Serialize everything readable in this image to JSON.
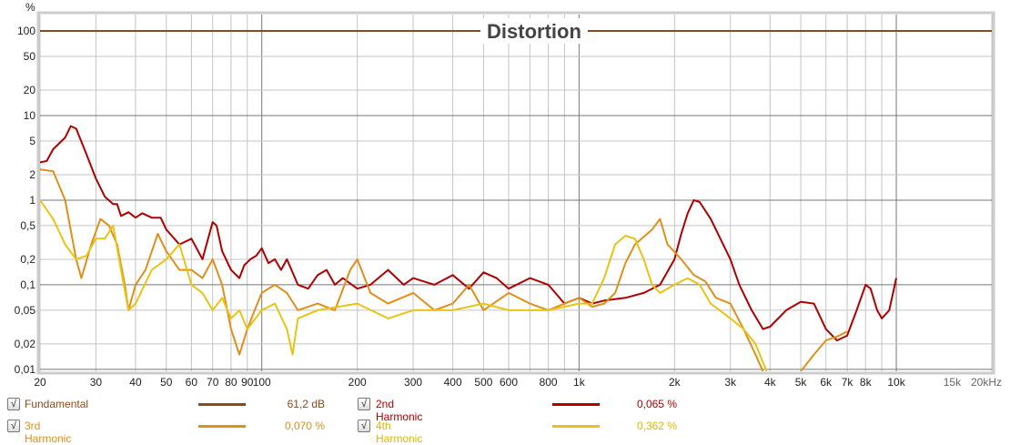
{
  "chart_data": {
    "type": "line",
    "title": "Distortion",
    "ylabel": "%",
    "xlabel": "",
    "x_scale": "log",
    "y_scale": "log",
    "xlim": [
      20,
      20000
    ],
    "ylim": [
      0.0095,
      156
    ],
    "grid": true,
    "x_ticks": [
      {
        "v": 20,
        "label": "20"
      },
      {
        "v": 30,
        "label": "30"
      },
      {
        "v": 40,
        "label": "40"
      },
      {
        "v": 50,
        "label": "50"
      },
      {
        "v": 60,
        "label": "60"
      },
      {
        "v": 70,
        "label": "70"
      },
      {
        "v": 80,
        "label": "80"
      },
      {
        "v": 90,
        "label": "90"
      },
      {
        "v": 100,
        "label": "100"
      },
      {
        "v": 200,
        "label": "200"
      },
      {
        "v": 300,
        "label": "300"
      },
      {
        "v": 400,
        "label": "400"
      },
      {
        "v": 500,
        "label": "500"
      },
      {
        "v": 600,
        "label": "600"
      },
      {
        "v": 800,
        "label": "800"
      },
      {
        "v": 1000,
        "label": "1k"
      },
      {
        "v": 2000,
        "label": "2k"
      },
      {
        "v": 3000,
        "label": "3k"
      },
      {
        "v": 4000,
        "label": "4k"
      },
      {
        "v": 5000,
        "label": "5k"
      },
      {
        "v": 6000,
        "label": "6k"
      },
      {
        "v": 7000,
        "label": "7k"
      },
      {
        "v": 8000,
        "label": "8k"
      },
      {
        "v": 10000,
        "label": "10k"
      },
      {
        "v": 15000,
        "label": "15k"
      },
      {
        "v": 20000,
        "label": "20kHz"
      }
    ],
    "y_ticks": [
      {
        "v": 100,
        "label": "100"
      },
      {
        "v": 50,
        "label": "50"
      },
      {
        "v": 20,
        "label": "20"
      },
      {
        "v": 10,
        "label": "10"
      },
      {
        "v": 5,
        "label": "5"
      },
      {
        "v": 2,
        "label": "2"
      },
      {
        "v": 1,
        "label": "1"
      },
      {
        "v": 0.5,
        "label": "0,5"
      },
      {
        "v": 0.2,
        "label": "0,2"
      },
      {
        "v": 0.1,
        "label": "0,1"
      },
      {
        "v": 0.05,
        "label": "0,05"
      },
      {
        "v": 0.02,
        "label": "0,02"
      },
      {
        "v": 0.01,
        "label": "0,01"
      }
    ],
    "series": [
      {
        "name": "Fundamental",
        "color": "#8b4a1c",
        "value": "61,2 dB",
        "points": [
          [
            20,
            100
          ],
          [
            20000,
            100
          ]
        ]
      },
      {
        "name": "2nd Harmonic",
        "color": "#b00000",
        "value": "0,065 %",
        "points": [
          [
            20,
            2.8
          ],
          [
            21,
            2.9
          ],
          [
            22,
            4
          ],
          [
            24,
            5.5
          ],
          [
            25,
            7.5
          ],
          [
            26,
            7
          ],
          [
            28,
            3.5
          ],
          [
            30,
            1.8
          ],
          [
            32,
            1.1
          ],
          [
            34,
            0.9
          ],
          [
            35,
            0.9
          ],
          [
            36,
            0.65
          ],
          [
            38,
            0.72
          ],
          [
            40,
            0.62
          ],
          [
            42,
            0.7
          ],
          [
            45,
            0.62
          ],
          [
            48,
            0.62
          ],
          [
            50,
            0.45
          ],
          [
            55,
            0.3
          ],
          [
            60,
            0.35
          ],
          [
            65,
            0.2
          ],
          [
            70,
            0.55
          ],
          [
            72,
            0.5
          ],
          [
            75,
            0.25
          ],
          [
            80,
            0.15
          ],
          [
            85,
            0.12
          ],
          [
            88,
            0.17
          ],
          [
            92,
            0.2
          ],
          [
            96,
            0.22
          ],
          [
            100,
            0.27
          ],
          [
            105,
            0.18
          ],
          [
            110,
            0.2
          ],
          [
            115,
            0.15
          ],
          [
            120,
            0.2
          ],
          [
            130,
            0.1
          ],
          [
            140,
            0.09
          ],
          [
            150,
            0.13
          ],
          [
            160,
            0.15
          ],
          [
            170,
            0.1
          ],
          [
            180,
            0.12
          ],
          [
            200,
            0.09
          ],
          [
            220,
            0.1
          ],
          [
            250,
            0.15
          ],
          [
            280,
            0.1
          ],
          [
            300,
            0.12
          ],
          [
            350,
            0.1
          ],
          [
            400,
            0.13
          ],
          [
            450,
            0.09
          ],
          [
            500,
            0.14
          ],
          [
            550,
            0.12
          ],
          [
            600,
            0.09
          ],
          [
            700,
            0.12
          ],
          [
            800,
            0.1
          ],
          [
            900,
            0.06
          ],
          [
            1000,
            0.07
          ],
          [
            1100,
            0.06
          ],
          [
            1200,
            0.065
          ],
          [
            1400,
            0.07
          ],
          [
            1600,
            0.08
          ],
          [
            1800,
            0.1
          ],
          [
            2000,
            0.2
          ],
          [
            2100,
            0.4
          ],
          [
            2200,
            0.7
          ],
          [
            2300,
            1.0
          ],
          [
            2400,
            0.95
          ],
          [
            2600,
            0.6
          ],
          [
            3000,
            0.2
          ],
          [
            3200,
            0.1
          ],
          [
            3500,
            0.05
          ],
          [
            3800,
            0.03
          ],
          [
            4000,
            0.032
          ],
          [
            4500,
            0.05
          ],
          [
            5000,
            0.063
          ],
          [
            5500,
            0.06
          ],
          [
            6000,
            0.03
          ],
          [
            6500,
            0.022
          ],
          [
            7000,
            0.025
          ],
          [
            7500,
            0.05
          ],
          [
            8000,
            0.1
          ],
          [
            8300,
            0.09
          ],
          [
            8700,
            0.05
          ],
          [
            9000,
            0.04
          ],
          [
            9500,
            0.05
          ],
          [
            10000,
            0.12
          ]
        ]
      },
      {
        "name": "3rd Harmonic",
        "color": "#e0901a",
        "value": "0,070 %",
        "points": [
          [
            20,
            2.3
          ],
          [
            22,
            2.2
          ],
          [
            24,
            1.0
          ],
          [
            26,
            0.2
          ],
          [
            27,
            0.12
          ],
          [
            29,
            0.3
          ],
          [
            31,
            0.6
          ],
          [
            33,
            0.5
          ],
          [
            35,
            0.3
          ],
          [
            37,
            0.1
          ],
          [
            38,
            0.05
          ],
          [
            40,
            0.1
          ],
          [
            43,
            0.15
          ],
          [
            47,
            0.4
          ],
          [
            50,
            0.25
          ],
          [
            55,
            0.15
          ],
          [
            60,
            0.15
          ],
          [
            65,
            0.12
          ],
          [
            70,
            0.2
          ],
          [
            75,
            0.1
          ],
          [
            80,
            0.03
          ],
          [
            85,
            0.015
          ],
          [
            90,
            0.03
          ],
          [
            95,
            0.05
          ],
          [
            100,
            0.08
          ],
          [
            110,
            0.1
          ],
          [
            120,
            0.08
          ],
          [
            130,
            0.05
          ],
          [
            150,
            0.06
          ],
          [
            170,
            0.05
          ],
          [
            190,
            0.15
          ],
          [
            200,
            0.2
          ],
          [
            220,
            0.08
          ],
          [
            250,
            0.06
          ],
          [
            300,
            0.08
          ],
          [
            350,
            0.05
          ],
          [
            400,
            0.06
          ],
          [
            450,
            0.1
          ],
          [
            500,
            0.05
          ],
          [
            600,
            0.08
          ],
          [
            700,
            0.06
          ],
          [
            800,
            0.05
          ],
          [
            900,
            0.06
          ],
          [
            1000,
            0.07
          ],
          [
            1100,
            0.055
          ],
          [
            1200,
            0.06
          ],
          [
            1300,
            0.08
          ],
          [
            1400,
            0.18
          ],
          [
            1500,
            0.3
          ],
          [
            1700,
            0.45
          ],
          [
            1800,
            0.6
          ],
          [
            1900,
            0.3
          ],
          [
            2100,
            0.2
          ],
          [
            2300,
            0.13
          ],
          [
            2500,
            0.11
          ],
          [
            2700,
            0.07
          ],
          [
            3000,
            0.06
          ],
          [
            3300,
            0.03
          ],
          [
            3600,
            0.015
          ],
          [
            3800,
            0.0095
          ],
          null,
          [
            5000,
            0.0095
          ],
          [
            5500,
            0.015
          ],
          [
            6000,
            0.022
          ],
          [
            6600,
            0.025
          ],
          [
            7000,
            0.028
          ]
        ]
      },
      {
        "name": "4th Harmonic",
        "color": "#e8c414",
        "value": "0,362 %",
        "points": [
          [
            20,
            1.0
          ],
          [
            22,
            0.6
          ],
          [
            24,
            0.3
          ],
          [
            26,
            0.2
          ],
          [
            28,
            0.22
          ],
          [
            30,
            0.35
          ],
          [
            32,
            0.35
          ],
          [
            34,
            0.5
          ],
          [
            36,
            0.15
          ],
          [
            38,
            0.05
          ],
          [
            40,
            0.06
          ],
          [
            45,
            0.15
          ],
          [
            50,
            0.2
          ],
          [
            55,
            0.3
          ],
          [
            60,
            0.1
          ],
          [
            65,
            0.08
          ],
          [
            70,
            0.05
          ],
          [
            75,
            0.07
          ],
          [
            80,
            0.04
          ],
          [
            85,
            0.05
          ],
          [
            90,
            0.03
          ],
          [
            100,
            0.05
          ],
          [
            110,
            0.06
          ],
          [
            120,
            0.03
          ],
          [
            125,
            0.015
          ],
          [
            130,
            0.04
          ],
          [
            150,
            0.05
          ],
          [
            200,
            0.06
          ],
          [
            250,
            0.04
          ],
          [
            300,
            0.05
          ],
          [
            400,
            0.05
          ],
          [
            500,
            0.06
          ],
          [
            600,
            0.05
          ],
          [
            800,
            0.05
          ],
          [
            1000,
            0.06
          ],
          [
            1100,
            0.06
          ],
          [
            1200,
            0.12
          ],
          [
            1300,
            0.3
          ],
          [
            1400,
            0.38
          ],
          [
            1500,
            0.35
          ],
          [
            1600,
            0.2
          ],
          [
            1700,
            0.1
          ],
          [
            1800,
            0.08
          ],
          [
            2000,
            0.1
          ],
          [
            2200,
            0.12
          ],
          [
            2400,
            0.1
          ],
          [
            2600,
            0.06
          ],
          [
            3000,
            0.04
          ],
          [
            3300,
            0.03
          ],
          [
            3600,
            0.02
          ],
          [
            3900,
            0.0095
          ]
        ]
      }
    ]
  },
  "legend": [
    {
      "label": "Fundamental",
      "value": "61,2 dB",
      "checked": "√",
      "color": "#8b4a1c"
    },
    {
      "label": "2nd Harmonic",
      "value": "0,065 %",
      "checked": "√",
      "color": "#b00000"
    },
    {
      "label": "3rd Harmonic",
      "value": "0,070 %",
      "checked": "√",
      "color": "#e0901a"
    },
    {
      "label": "4th Harmonic",
      "value": "0,362 %",
      "checked": "√",
      "color": "#e8c414"
    }
  ]
}
